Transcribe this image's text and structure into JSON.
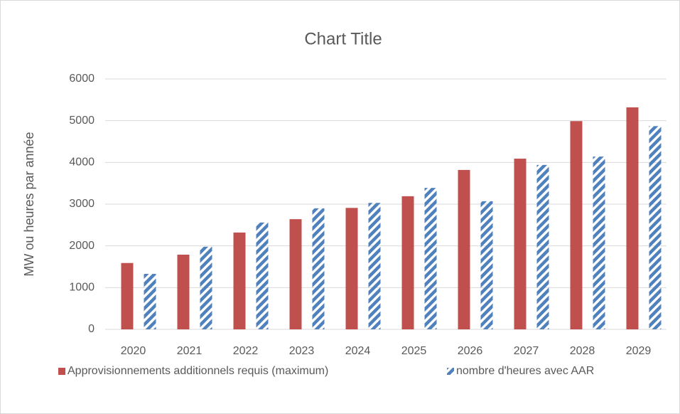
{
  "chart_data": {
    "type": "bar",
    "title": "Chart Title",
    "y_label": "MW ou heures par année",
    "categories": [
      "2020",
      "2021",
      "2022",
      "2023",
      "2024",
      "2025",
      "2026",
      "2027",
      "2028",
      "2029"
    ],
    "series": [
      {
        "name": "Approvisionnements additionnels requis (maximum)",
        "color": "#c0504d",
        "values": [
          1590,
          1790,
          2320,
          2640,
          2910,
          3190,
          3820,
          4090,
          4990,
          5320
        ]
      },
      {
        "name": "nombre d'heures avec AAR",
        "color": "#4f81bd",
        "pattern": "stripes",
        "values": [
          1330,
          1980,
          2560,
          2900,
          3030,
          3390,
          3070,
          3940,
          4140,
          4870
        ]
      }
    ],
    "ylim": [
      0,
      6000
    ],
    "yticks": [
      0,
      1000,
      2000,
      3000,
      4000,
      5000,
      6000
    ],
    "grid": true,
    "legend": "bottom"
  }
}
